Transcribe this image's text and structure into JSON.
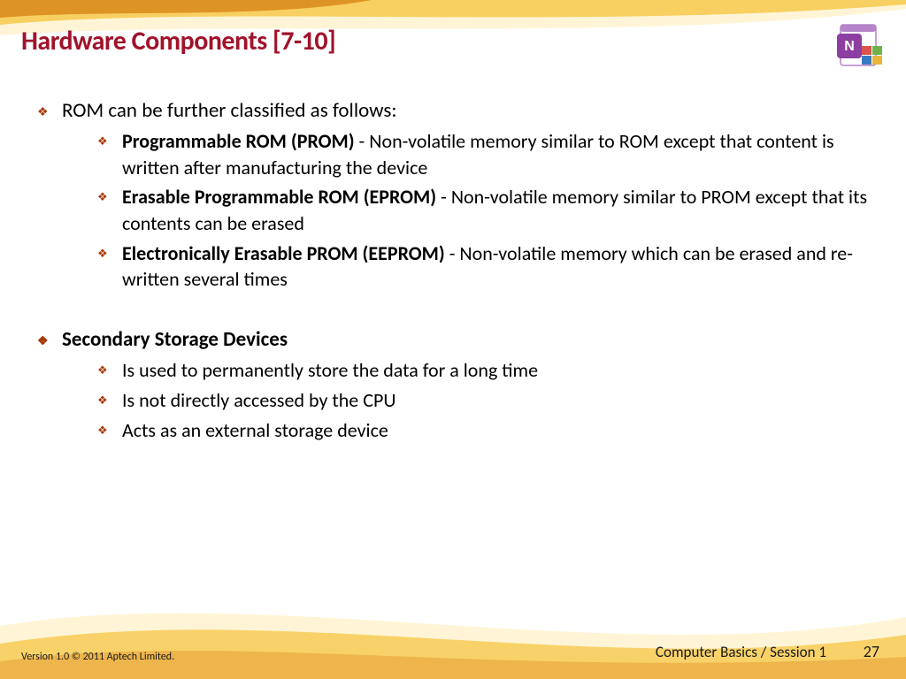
{
  "colors": {
    "title": "#a0132b",
    "bullet": "#a63a0a",
    "swoosh_light": "#fff5d6",
    "swoosh_mid": "#f6c544",
    "swoosh_dark": "#d98a1a",
    "swoosh_accent": "#e8a23a",
    "background": "#ffffff",
    "text": "#000000"
  },
  "typography": {
    "title_fontsize": 30,
    "l1_fontsize": 23,
    "l2_fontsize": 22,
    "footer_small_fontsize": 12,
    "footer_main_fontsize": 17
  },
  "title": "Hardware Components [7-10]",
  "bullets": [
    {
      "level": 1,
      "bold": false,
      "text": "ROM can be further classified as follows:"
    },
    {
      "level": 2,
      "bold_lead": "Programmable ROM (PROM)",
      "rest": " - Non-volatile memory similar to ROM except that content is written after manufacturing the device"
    },
    {
      "level": 2,
      "bold_lead": "Erasable Programmable ROM (EPROM)",
      "rest": " - Non-volatile memory similar to PROM except that its contents can be erased"
    },
    {
      "level": 2,
      "bold_lead": "Electronically Erasable PROM (EEPROM)",
      "rest": " - Non-volatile memory which can be erased and re-written several times"
    },
    {
      "level": 0,
      "spacer": true
    },
    {
      "level": 1,
      "bold": true,
      "text": "Secondary Storage Devices"
    },
    {
      "level": 2,
      "plain": "Is used to permanently store the data for a long time"
    },
    {
      "level": 2,
      "plain": "Is not directly accessed by the CPU"
    },
    {
      "level": 2,
      "plain": "Acts as an external storage device"
    }
  ],
  "footer": {
    "left": "Version 1.0 © 2011 Aptech Limited.",
    "center": "Computer Basics / Session 1",
    "page": "27"
  },
  "logo_name": "onenote-windows-icon"
}
